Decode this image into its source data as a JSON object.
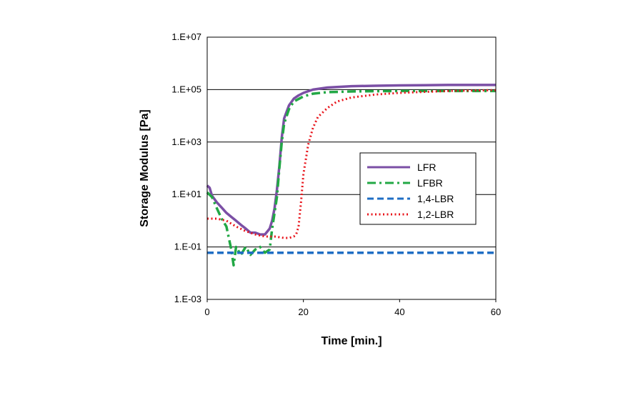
{
  "chart_data": {
    "type": "line",
    "xlabel": "Time [min.]",
    "ylabel": "Storage Modulus [Pa]",
    "x_scale": "linear",
    "y_scale": "log",
    "xlim": [
      0,
      60
    ],
    "ylim": [
      0.001,
      10000000
    ],
    "x_ticks": [
      0,
      20,
      40,
      60
    ],
    "x_tick_labels": [
      "0",
      "20",
      "40",
      "60"
    ],
    "y_ticks": [
      0.001,
      0.1,
      10,
      1000,
      100000,
      10000000
    ],
    "y_tick_labels": [
      "1.E-03",
      "1.E-01",
      "1.E+01",
      "1.E+03",
      "1.E+05",
      "1.E+07"
    ],
    "grid": "horizontal",
    "legend_position": "right-middle",
    "series": [
      {
        "name": "LFR",
        "color": "#7B4FA5",
        "style": "solid",
        "x": [
          0,
          0.5,
          1,
          2,
          3,
          4,
          5,
          6,
          7,
          8,
          9,
          10,
          11,
          12,
          13,
          13.5,
          14,
          14.5,
          15,
          15.5,
          16,
          17,
          18,
          19,
          20,
          22,
          25,
          30,
          35,
          40,
          45,
          50,
          55,
          60
        ],
        "y": [
          22,
          18,
          9,
          5,
          3.2,
          2,
          1.4,
          1,
          0.7,
          0.5,
          0.35,
          0.35,
          0.3,
          0.3,
          0.5,
          1,
          3,
          15,
          120,
          1500,
          8000,
          25000,
          45000,
          60000,
          75000,
          100000,
          120000,
          135000,
          140000,
          145000,
          148000,
          150000,
          150000,
          150000
        ]
      },
      {
        "name": "LFBR",
        "color": "#22A845",
        "style": "dash-dot",
        "x": [
          0,
          1,
          2,
          3,
          4,
          5,
          5.5,
          6,
          7,
          8,
          9,
          10,
          11,
          12,
          13,
          13.5,
          14,
          14.5,
          15,
          15.5,
          16,
          17,
          18,
          20,
          22,
          25,
          30,
          35,
          40,
          45,
          50,
          55,
          60
        ],
        "y": [
          12,
          8,
          3,
          1.2,
          0.6,
          0.08,
          0.02,
          0.1,
          0.05,
          0.1,
          0.05,
          0.08,
          0.1,
          0.06,
          0.08,
          0.5,
          2,
          8,
          100,
          1000,
          5000,
          18000,
          35000,
          55000,
          70000,
          80000,
          85000,
          87000,
          88000,
          88000,
          88000,
          88000,
          88000
        ]
      },
      {
        "name": "1,4-LBR",
        "color": "#1F6EC4",
        "style": "dashed",
        "x": [
          0,
          60
        ],
        "y": [
          0.06,
          0.06
        ]
      },
      {
        "name": "1,2-LBR",
        "color": "#E8141B",
        "style": "dotted",
        "x": [
          0,
          2,
          4,
          6,
          8,
          10,
          12,
          14,
          16,
          17,
          18,
          18.5,
          19,
          19.5,
          20,
          21,
          22,
          23,
          25,
          27,
          30,
          35,
          40,
          45,
          50,
          55,
          60
        ],
        "y": [
          1.2,
          1.2,
          1,
          0.6,
          0.4,
          0.3,
          0.25,
          0.25,
          0.22,
          0.22,
          0.25,
          0.3,
          0.6,
          5,
          60,
          800,
          3500,
          9000,
          20000,
          35000,
          50000,
          65000,
          75000,
          82000,
          88000,
          92000,
          95000
        ]
      }
    ]
  }
}
